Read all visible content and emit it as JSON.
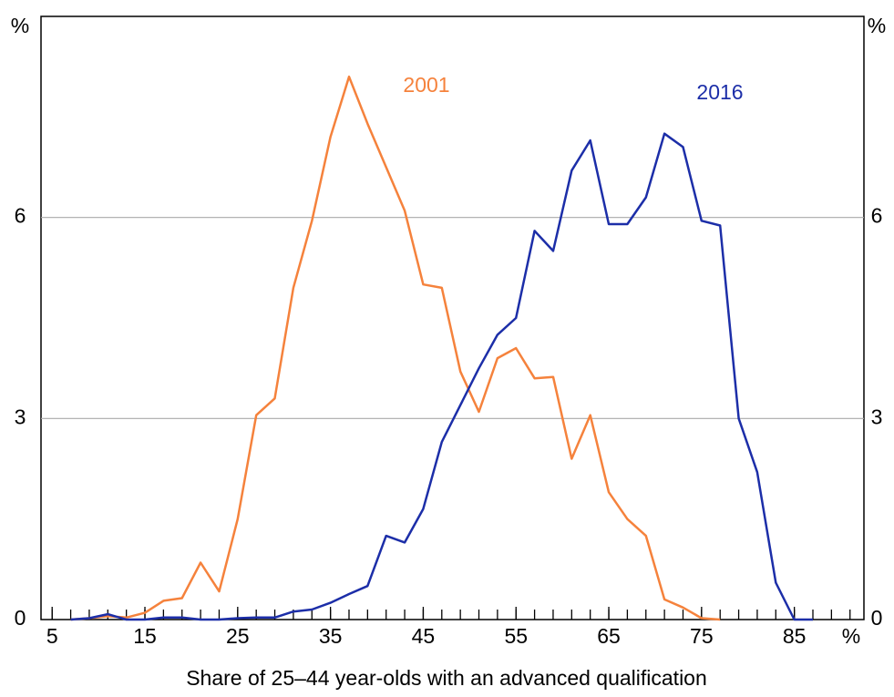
{
  "chart_data": {
    "type": "line",
    "x_label": "Share of 25–44 year-olds with an advanced qualification",
    "x_unit": "%",
    "y_unit": "%",
    "y2_unit": "%",
    "x": [
      7,
      9,
      11,
      13,
      15,
      17,
      19,
      21,
      23,
      25,
      27,
      29,
      31,
      33,
      35,
      37,
      39,
      41,
      43,
      45,
      47,
      49,
      51,
      53,
      55,
      57,
      59,
      61,
      63,
      65,
      67,
      69,
      71,
      73,
      75,
      77,
      79,
      81,
      83,
      85,
      87
    ],
    "series": [
      {
        "name": "2001",
        "color": "#f5823c",
        "values": [
          0,
          0.02,
          0.05,
          0.03,
          0.1,
          0.28,
          0.32,
          0.85,
          0.42,
          1.5,
          3.05,
          3.3,
          4.95,
          5.95,
          7.2,
          8.1,
          7.4,
          6.75,
          6.1,
          5.0,
          4.95,
          3.7,
          3.1,
          3.9,
          4.05,
          3.6,
          3.62,
          2.4,
          3.05,
          1.9,
          1.5,
          1.25,
          0.3,
          0.18,
          0.02,
          0,
          null,
          null,
          null,
          null,
          null
        ]
      },
      {
        "name": "2016",
        "color": "#1c2ea8",
        "values": [
          0,
          0.02,
          0.08,
          0,
          0,
          0.03,
          0.03,
          0,
          0,
          0.02,
          0.03,
          0.03,
          0.12,
          0.15,
          0.25,
          0.38,
          0.5,
          1.25,
          1.15,
          1.65,
          2.65,
          3.2,
          3.75,
          4.25,
          4.5,
          5.8,
          5.5,
          6.7,
          7.15,
          5.9,
          5.9,
          6.3,
          7.25,
          7.05,
          5.95,
          5.88,
          3.0,
          2.2,
          0.55,
          0,
          0
        ]
      }
    ],
    "xlim": [
      3.8,
      92.5
    ],
    "xticks": [
      5,
      15,
      25,
      35,
      45,
      55,
      65,
      75,
      85
    ],
    "xminor_ticks": [
      5,
      7,
      9,
      11,
      13,
      15,
      17,
      19,
      21,
      23,
      25,
      27,
      29,
      31,
      33,
      35,
      37,
      39,
      41,
      43,
      45,
      47,
      49,
      51,
      53,
      55,
      57,
      59,
      61,
      63,
      65,
      67,
      69,
      71,
      73,
      75,
      77,
      79,
      81,
      83,
      85,
      87,
      89,
      91
    ],
    "ylim": [
      0,
      9
    ],
    "yticks": [
      0,
      3,
      6
    ],
    "y2lim": [
      0,
      9
    ],
    "y2ticks": [
      0,
      3,
      6
    ],
    "grid": true
  }
}
